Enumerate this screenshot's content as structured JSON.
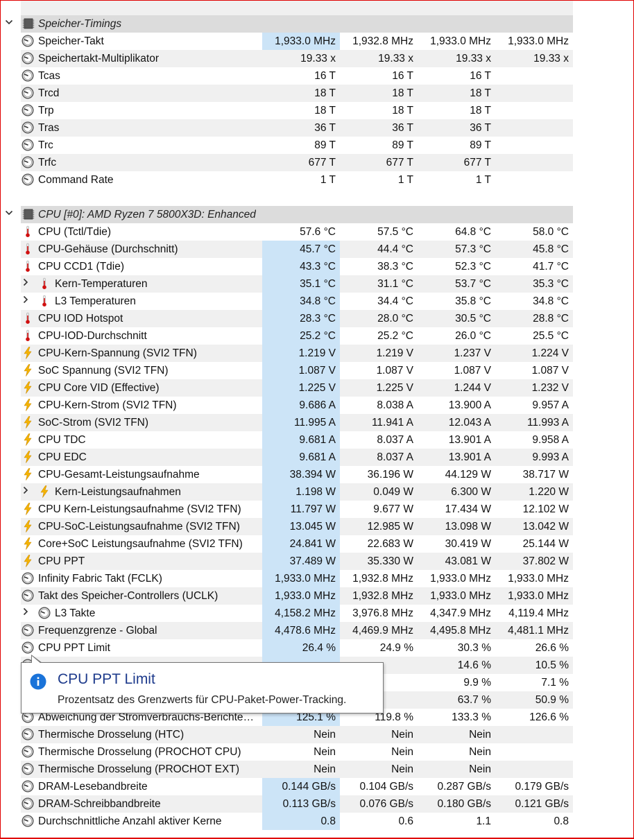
{
  "colors": {
    "highlight": "#cce4f7",
    "border": "#e00000",
    "tooltip_title": "#1e3b8c"
  },
  "sections": [
    {
      "title": "Speicher-Timings",
      "rows": [
        {
          "name": "Speicher-Takt",
          "icon": "clock-icon",
          "values": [
            "1,933.0 MHz",
            "1,932.8 MHz",
            "1,933.0 MHz",
            "1,933.0 MHz"
          ],
          "hl": true
        },
        {
          "name": "Speichertakt-Multiplikator",
          "icon": "clock-icon",
          "values": [
            "19.33 x",
            "19.33 x",
            "19.33 x",
            "19.33 x"
          ]
        },
        {
          "name": "Tcas",
          "icon": "clock-icon",
          "values": [
            "16 T",
            "16 T",
            "16 T",
            ""
          ]
        },
        {
          "name": "Trcd",
          "icon": "clock-icon",
          "values": [
            "18 T",
            "18 T",
            "18 T",
            ""
          ]
        },
        {
          "name": "Trp",
          "icon": "clock-icon",
          "values": [
            "18 T",
            "18 T",
            "18 T",
            ""
          ]
        },
        {
          "name": "Tras",
          "icon": "clock-icon",
          "values": [
            "36 T",
            "36 T",
            "36 T",
            ""
          ]
        },
        {
          "name": "Trc",
          "icon": "clock-icon",
          "values": [
            "89 T",
            "89 T",
            "89 T",
            ""
          ]
        },
        {
          "name": "Trfc",
          "icon": "clock-icon",
          "values": [
            "677 T",
            "677 T",
            "677 T",
            ""
          ]
        },
        {
          "name": "Command Rate",
          "icon": "clock-icon",
          "values": [
            "1 T",
            "1 T",
            "1 T",
            ""
          ]
        }
      ]
    },
    {
      "title": "CPU [#0]: AMD Ryzen 7 5800X3D: Enhanced",
      "rows": [
        {
          "name": "CPU (Tctl/Tdie)",
          "icon": "thermometer-icon",
          "values": [
            "57.6 °C",
            "57.5 °C",
            "64.8 °C",
            "58.0 °C"
          ]
        },
        {
          "name": "CPU-Gehäuse (Durchschnitt)",
          "icon": "thermometer-icon",
          "values": [
            "45.7 °C",
            "44.4 °C",
            "57.3 °C",
            "45.8 °C"
          ],
          "hl": true
        },
        {
          "name": "CPU CCD1 (Tdie)",
          "icon": "thermometer-icon",
          "values": [
            "43.3 °C",
            "38.3 °C",
            "52.3 °C",
            "41.7 °C"
          ],
          "hl": true
        },
        {
          "name": "Kern-Temperaturen",
          "icon": "thermometer-icon",
          "values": [
            "35.1 °C",
            "31.1 °C",
            "53.7 °C",
            "35.3 °C"
          ],
          "hl": true,
          "group": true
        },
        {
          "name": "L3 Temperaturen",
          "icon": "thermometer-icon",
          "values": [
            "34.8 °C",
            "34.4 °C",
            "35.8 °C",
            "34.8 °C"
          ],
          "hl": true,
          "group": true
        },
        {
          "name": "CPU IOD Hotspot",
          "icon": "thermometer-icon",
          "values": [
            "28.3 °C",
            "28.0 °C",
            "30.5 °C",
            "28.8 °C"
          ],
          "hl": true
        },
        {
          "name": "CPU-IOD-Durchschnitt",
          "icon": "thermometer-icon",
          "values": [
            "25.2 °C",
            "25.2 °C",
            "26.0 °C",
            "25.5 °C"
          ],
          "hl": true
        },
        {
          "name": "CPU-Kern-Spannung (SVI2 TFN)",
          "icon": "lightning-icon",
          "values": [
            "1.219 V",
            "1.219 V",
            "1.237 V",
            "1.224 V"
          ],
          "hl": true
        },
        {
          "name": "SoC Spannung (SVI2 TFN)",
          "icon": "lightning-icon",
          "values": [
            "1.087 V",
            "1.087 V",
            "1.087 V",
            "1.087 V"
          ],
          "hl": true
        },
        {
          "name": "CPU Core VID (Effective)",
          "icon": "lightning-icon",
          "values": [
            "1.225 V",
            "1.225 V",
            "1.244 V",
            "1.232 V"
          ],
          "hl": true
        },
        {
          "name": "CPU-Kern-Strom (SVI2 TFN)",
          "icon": "lightning-icon",
          "values": [
            "9.686 A",
            "8.038 A",
            "13.900 A",
            "9.957 A"
          ],
          "hl": true
        },
        {
          "name": "SoC-Strom (SVI2 TFN)",
          "icon": "lightning-icon",
          "values": [
            "11.995 A",
            "11.941 A",
            "12.043 A",
            "11.993 A"
          ],
          "hl": true
        },
        {
          "name": "CPU TDC",
          "icon": "lightning-icon",
          "values": [
            "9.681 A",
            "8.037 A",
            "13.901 A",
            "9.958 A"
          ],
          "hl": true
        },
        {
          "name": "CPU EDC",
          "icon": "lightning-icon",
          "values": [
            "9.681 A",
            "8.037 A",
            "13.901 A",
            "9.993 A"
          ],
          "hl": true
        },
        {
          "name": "CPU-Gesamt-Leistungsaufnahme",
          "icon": "lightning-icon",
          "values": [
            "38.394 W",
            "36.196 W",
            "44.129 W",
            "38.717 W"
          ],
          "hl": true
        },
        {
          "name": "Kern-Leistungsaufnahmen",
          "icon": "lightning-icon",
          "values": [
            "1.198 W",
            "0.049 W",
            "6.300 W",
            "1.220 W"
          ],
          "hl": true,
          "group": true
        },
        {
          "name": "CPU Kern-Leistungsaufnahme (SVI2 TFN)",
          "icon": "lightning-icon",
          "values": [
            "11.797 W",
            "9.677 W",
            "17.434 W",
            "12.102 W"
          ],
          "hl": true
        },
        {
          "name": "CPU-SoC-Leistungsaufnahme (SVI2 TFN)",
          "icon": "lightning-icon",
          "values": [
            "13.045 W",
            "12.985 W",
            "13.098 W",
            "13.042 W"
          ],
          "hl": true
        },
        {
          "name": "Core+SoC Leistungsaufnahme (SVI2 TFN)",
          "icon": "lightning-icon",
          "values": [
            "24.841 W",
            "22.683 W",
            "30.419 W",
            "25.144 W"
          ],
          "hl": true
        },
        {
          "name": "CPU PPT",
          "icon": "lightning-icon",
          "values": [
            "37.489 W",
            "35.330 W",
            "43.081 W",
            "37.802 W"
          ],
          "hl": true
        },
        {
          "name": "Infinity Fabric Takt (FCLK)",
          "icon": "clock-icon",
          "values": [
            "1,933.0 MHz",
            "1,932.8 MHz",
            "1,933.0 MHz",
            "1,933.0 MHz"
          ],
          "hl": true
        },
        {
          "name": "Takt des Speicher-Controllers (UCLK)",
          "icon": "clock-icon",
          "values": [
            "1,933.0 MHz",
            "1,932.8 MHz",
            "1,933.0 MHz",
            "1,933.0 MHz"
          ],
          "hl": true
        },
        {
          "name": "L3 Takte",
          "icon": "clock-icon",
          "values": [
            "4,158.2 MHz",
            "3,976.8 MHz",
            "4,347.9 MHz",
            "4,119.4 MHz"
          ],
          "hl": true,
          "group": true
        },
        {
          "name": "Frequenzgrenze - Global",
          "icon": "clock-icon",
          "values": [
            "4,478.6 MHz",
            "4,469.9 MHz",
            "4,495.8 MHz",
            "4,481.1 MHz"
          ],
          "hl": true
        },
        {
          "name": "CPU PPT Limit",
          "icon": "clock-icon",
          "values": [
            "26.4 %",
            "24.9 %",
            "30.3 %",
            "26.6 %"
          ],
          "hl": true
        },
        {
          "name": "",
          "icon": "clock-icon",
          "values": [
            "",
            "",
            "14.6 %",
            "10.5 %"
          ],
          "hl": true
        },
        {
          "name": "",
          "icon": "clock-icon",
          "values": [
            "",
            "",
            "9.9 %",
            "7.1 %"
          ],
          "hl": true
        },
        {
          "name": "",
          "icon": "clock-icon",
          "values": [
            "",
            "",
            "63.7 %",
            "50.9 %"
          ],
          "hl": true
        },
        {
          "name": "Abweichung der Stromverbrauchs-Berichte…",
          "icon": "clock-icon",
          "values": [
            "125.1 %",
            "119.8 %",
            "133.3 %",
            "126.6 %"
          ],
          "hl": true
        },
        {
          "name": "Thermische Drosselung (HTC)",
          "icon": "clock-icon",
          "values": [
            "Nein",
            "Nein",
            "Nein",
            ""
          ]
        },
        {
          "name": "Thermische Drosselung (PROCHOT CPU)",
          "icon": "clock-icon",
          "values": [
            "Nein",
            "Nein",
            "Nein",
            ""
          ]
        },
        {
          "name": "Thermische Drosselung (PROCHOT EXT)",
          "icon": "clock-icon",
          "values": [
            "Nein",
            "Nein",
            "Nein",
            ""
          ]
        },
        {
          "name": "DRAM-Lesebandbreite",
          "icon": "clock-icon",
          "values": [
            "0.144 GB/s",
            "0.104 GB/s",
            "0.287 GB/s",
            "0.179 GB/s"
          ],
          "hl": true
        },
        {
          "name": "DRAM-Schreibbandbreite",
          "icon": "clock-icon",
          "values": [
            "0.113 GB/s",
            "0.076 GB/s",
            "0.180 GB/s",
            "0.121 GB/s"
          ],
          "hl": true
        },
        {
          "name": "Durchschnittliche Anzahl aktiver Kerne",
          "icon": "clock-icon",
          "values": [
            "0.8",
            "0.6",
            "1.1",
            "0.8"
          ],
          "hl": true
        }
      ]
    }
  ],
  "tooltip": {
    "icon": "info-icon",
    "title": "CPU PPT Limit",
    "text": "Prozentsatz des Grenzwerts für CPU-Paket-Power-Tracking."
  }
}
